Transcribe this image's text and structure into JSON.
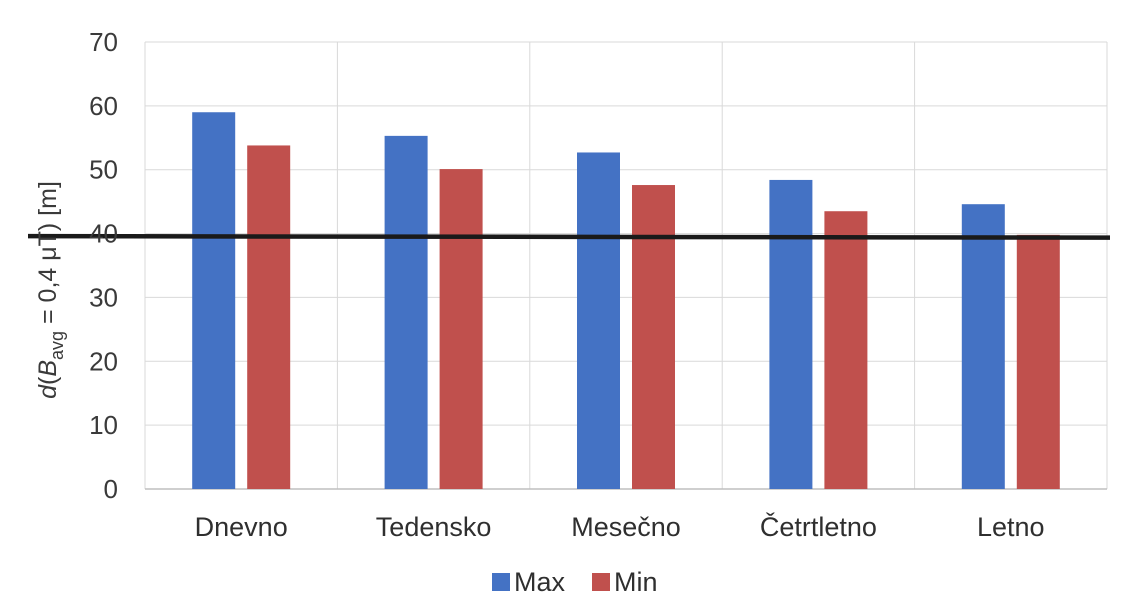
{
  "chart_data": {
    "type": "bar",
    "categories": [
      "Dnevno",
      "Tedensko",
      "Mesečno",
      "Četrtletno",
      "Letno"
    ],
    "series": [
      {
        "name": "Max",
        "color": "#4472C4",
        "values": [
          59,
          55.3,
          52.7,
          48.4,
          44.6
        ]
      },
      {
        "name": "Min",
        "color": "#C0504D",
        "values": [
          53.8,
          50.1,
          47.6,
          43.5,
          39.8
        ]
      }
    ],
    "ylabel": {
      "d": "d",
      "paren_open": "(",
      "b": "B",
      "sub": "avg",
      "rest": " = 0,4 μT) [m]"
    },
    "ylim": [
      0,
      70
    ],
    "yticks": [
      "0",
      "10",
      "20",
      "30",
      "40",
      "50",
      "60",
      "70"
    ],
    "reference_line": {
      "value": 39.6,
      "color": "#1a1a1a"
    },
    "grid": true,
    "legend_position": "bottom"
  }
}
